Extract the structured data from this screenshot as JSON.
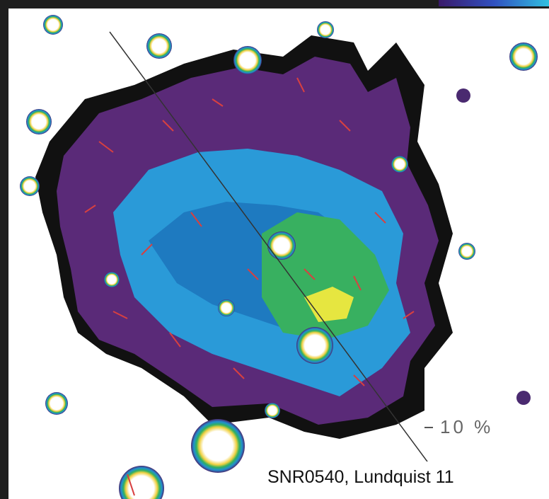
{
  "image": {
    "scale_label": "10 %",
    "caption": "SNR0540, Lundquist 11"
  }
}
